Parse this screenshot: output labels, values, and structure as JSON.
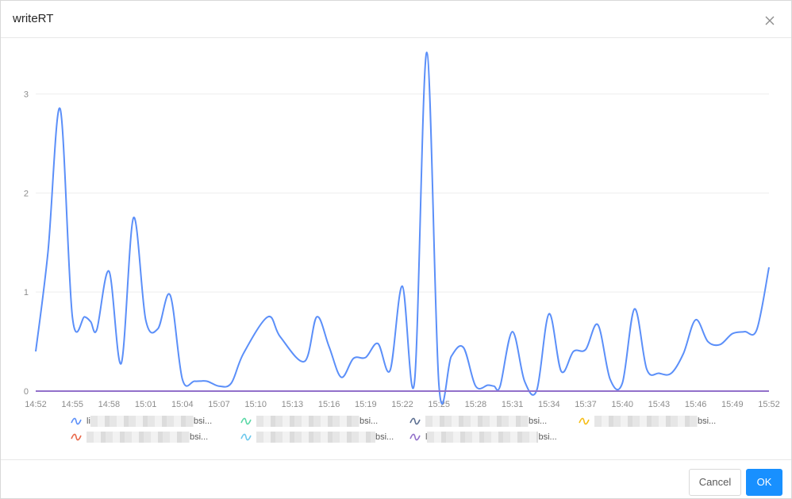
{
  "dialog": {
    "title": "writeRT",
    "cancel_label": "Cancel",
    "ok_label": "OK"
  },
  "legend": [
    {
      "prefix": "li",
      "suffix": "bsi...",
      "color": "#5b8ff9"
    },
    {
      "prefix": "",
      "suffix": "bsi...",
      "color": "#5ad8a6"
    },
    {
      "prefix": "",
      "suffix": "bsi...",
      "color": "#5d7092"
    },
    {
      "prefix": "",
      "suffix": "bsi...",
      "color": "#f6bd16"
    },
    {
      "prefix": "",
      "suffix": "bsi...",
      "color": "#e8684a"
    },
    {
      "prefix": "",
      "suffix": "bsi...",
      "color": "#6dc8ec"
    },
    {
      "prefix": "l",
      "suffix": "bsi...",
      "color": "#9270ca"
    }
  ],
  "chart_data": {
    "type": "line",
    "ylim": [
      0,
      3.5
    ],
    "yticks": [
      "0",
      "1",
      "2",
      "3"
    ],
    "xticks": [
      "14:52",
      "14:55",
      "14:58",
      "15:01",
      "15:04",
      "15:07",
      "15:10",
      "15:13",
      "15:16",
      "15:19",
      "15:22",
      "15:25",
      "15:28",
      "15:31",
      "15:34",
      "15:37",
      "15:40",
      "15:43",
      "15:46",
      "15:49",
      "15:52"
    ],
    "x_minutes": [
      0,
      1,
      2,
      3,
      4,
      4.5,
      5,
      6,
      7,
      8,
      9,
      10,
      11,
      12,
      13,
      14,
      15,
      16,
      17,
      19,
      20,
      22,
      23,
      24,
      25,
      26,
      27,
      28,
      29,
      30,
      31,
      32,
      33,
      34,
      35,
      36,
      37,
      37.5,
      38,
      39,
      40,
      41,
      42,
      43,
      44,
      45,
      46,
      47,
      48,
      49,
      50,
      51,
      52,
      53,
      54,
      55,
      56,
      57,
      58,
      59,
      60
    ],
    "series": [
      {
        "name": "",
        "color": "#5b8ff9",
        "values": [
          0.4,
          1.4,
          2.85,
          0.75,
          0.75,
          0.7,
          0.62,
          1.21,
          0.28,
          1.75,
          0.72,
          0.63,
          0.97,
          0.12,
          0.1,
          0.1,
          0.05,
          0.08,
          0.38,
          0.75,
          0.55,
          0.3,
          0.75,
          0.45,
          0.14,
          0.33,
          0.34,
          0.48,
          0.21,
          1.06,
          0.1,
          3.42,
          0.05,
          0.35,
          0.44,
          0.05,
          0.06,
          0.05,
          0.05,
          0.6,
          0.1,
          0.01,
          0.78,
          0.2,
          0.4,
          0.42,
          0.67,
          0.12,
          0.08,
          0.83,
          0.22,
          0.18,
          0.18,
          0.38,
          0.72,
          0.5,
          0.47,
          0.58,
          0.6,
          0.62,
          1.25
        ]
      },
      {
        "name": "",
        "color": "#9270ca",
        "values": [
          0,
          0,
          0,
          0,
          0,
          0,
          0,
          0,
          0,
          0,
          0,
          0,
          0,
          0,
          0,
          0,
          0,
          0,
          0,
          0,
          0,
          0,
          0,
          0,
          0,
          0,
          0,
          0,
          0,
          0,
          0,
          0,
          0,
          0,
          0,
          0,
          0,
          0,
          0,
          0,
          0,
          0,
          0,
          0,
          0,
          0,
          0,
          0,
          0,
          0,
          0,
          0,
          0,
          0,
          0,
          0,
          0,
          0,
          0,
          0,
          0
        ]
      }
    ]
  }
}
